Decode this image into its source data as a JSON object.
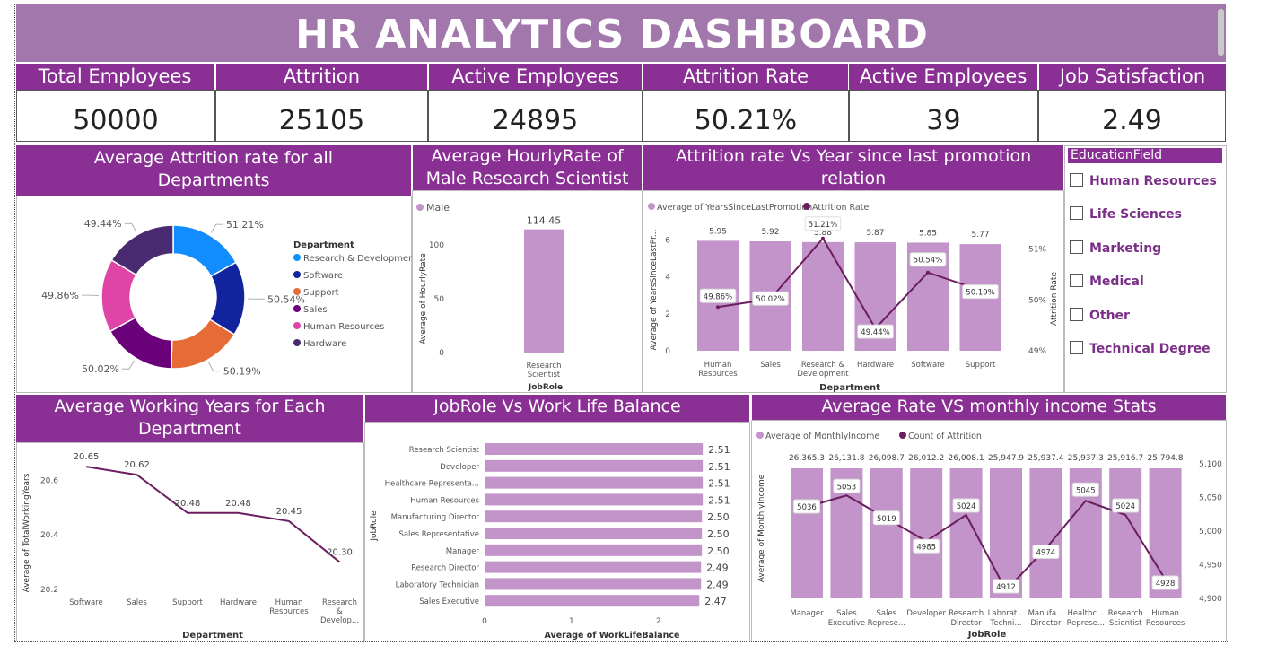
{
  "title": "HR ANALYTICS DASHBOARD",
  "kpis": [
    {
      "label": "Total Employees",
      "value": "50000"
    },
    {
      "label": "Attrition",
      "value": "25105"
    },
    {
      "label": "Active Employees",
      "value": "24895"
    },
    {
      "label": "Attrition Rate",
      "value": "50.21%"
    },
    {
      "label": "Active Employees",
      "value": "39"
    },
    {
      "label": "Job Satisfaction",
      "value": "2.49"
    }
  ],
  "education_filter": {
    "title": "EducationField",
    "items": [
      "Human Resources",
      "Life Sciences",
      "Marketing",
      "Medical",
      "Other",
      "Technical Degree"
    ]
  },
  "colors": {
    "header": "#8a2f94",
    "title_bar": "#a277ac",
    "bar": "#c294c9",
    "line": "#6b1d5e"
  },
  "chart_data": [
    {
      "type": "pie",
      "title": "Average Attrition rate for all Departments",
      "legend_title": "Department",
      "legend_position": "right",
      "slices": [
        {
          "label": "Research & Development",
          "value": 51.21,
          "display": "51.21%",
          "color": "#118dff"
        },
        {
          "label": "Software",
          "value": 50.54,
          "display": "50.54%",
          "color": "#12239e"
        },
        {
          "label": "Support",
          "value": 50.19,
          "display": "50.19%",
          "color": "#e66c37"
        },
        {
          "label": "Sales",
          "value": 50.02,
          "display": "50.02%",
          "color": "#6b007b"
        },
        {
          "label": "Human Resources",
          "value": 49.86,
          "display": "49.86%",
          "color": "#e044a7"
        },
        {
          "label": "Hardware",
          "value": 49.44,
          "display": "49.44%",
          "color": "#4a2a70"
        }
      ]
    },
    {
      "type": "bar",
      "title": "Average HourlyRate of Male Research Scientist",
      "legend": "Male",
      "categories": [
        "Research Scientist"
      ],
      "values": [
        114.45
      ],
      "value_labels": [
        "114.45"
      ],
      "xlabel": "JobRole",
      "ylabel": "Average of HourlyRate",
      "yticks": [
        0,
        50,
        100
      ],
      "ylim": [
        0,
        125
      ]
    },
    {
      "type": "bar",
      "title": "Attrition rate Vs Year since last promotion relation",
      "legend": [
        "Average of YearsSinceLastPromotion",
        "Attrition Rate"
      ],
      "categories": [
        "Human Resources",
        "Sales",
        "Research & Development",
        "Hardware",
        "Software",
        "Support"
      ],
      "bar_values": [
        5.95,
        5.92,
        5.88,
        5.87,
        5.85,
        5.77
      ],
      "line_values": [
        49.86,
        50.02,
        51.21,
        49.44,
        50.54,
        50.19
      ],
      "line_labels": [
        "49.86%",
        "50.02%",
        "51.21%",
        "49.44%",
        "50.54%",
        "50.19%"
      ],
      "xlabel": "Department",
      "ylabel": "Average of YearsSinceLastPr...",
      "y2label": "Attrition Rate",
      "yticks": [
        0,
        2,
        4,
        6
      ],
      "y2ticks": [
        "49%",
        "50%",
        "51%"
      ],
      "ylim": [
        0,
        6.6
      ],
      "y2lim": [
        49,
        51.4
      ]
    },
    {
      "type": "line",
      "title": "Average Working Years for Each Department",
      "categories": [
        "Software",
        "Sales",
        "Support",
        "Hardware",
        "Human Resources",
        "Research & Develop..."
      ],
      "values": [
        20.65,
        20.62,
        20.48,
        20.48,
        20.45,
        20.3
      ],
      "value_labels": [
        "20.65",
        "20.62",
        "20.48",
        "20.48",
        "20.45",
        "20.30"
      ],
      "xlabel": "Department",
      "ylabel": "Average of TotalWorkingYears",
      "yticks": [
        "20.2",
        "20.4",
        "20.6"
      ],
      "ylim": [
        20.2,
        20.67
      ]
    },
    {
      "type": "bar",
      "orientation": "horizontal",
      "title": "JobRole Vs Work Life Balance",
      "categories": [
        "Research Scientist",
        "Developer",
        "Healthcare Representa...",
        "Human Resources",
        "Manufacturing Director",
        "Sales Representative",
        "Manager",
        "Research Director",
        "Laboratory Technician",
        "Sales Executive"
      ],
      "values": [
        2.51,
        2.51,
        2.51,
        2.51,
        2.5,
        2.5,
        2.5,
        2.49,
        2.49,
        2.47
      ],
      "value_labels": [
        "2.51",
        "2.51",
        "2.51",
        "2.51",
        "2.50",
        "2.50",
        "2.50",
        "2.49",
        "2.49",
        "2.47"
      ],
      "xlabel": "Average of WorkLifeBalance",
      "ylabel": "JobRole",
      "xticks": [
        0,
        1,
        2
      ],
      "xlim": [
        0,
        2.55
      ]
    },
    {
      "type": "bar",
      "title": "Average Rate VS monthly income Stats",
      "legend": [
        "Average of MonthlyIncome",
        "Count of Attrition"
      ],
      "categories": [
        "Manager",
        "Sales Executive",
        "Sales Represe...",
        "Developer",
        "Research Director",
        "Laborat... Techni...",
        "Manufa... Director",
        "Healthc... Represe...",
        "Research Scientist",
        "Human Resources"
      ],
      "bar_values": [
        26365.3,
        26131.8,
        26098.7,
        26012.2,
        26008.1,
        25947.9,
        25937.4,
        25937.3,
        25916.7,
        25794.8
      ],
      "bar_labels": [
        "26,365.3",
        "26,131.8",
        "26,098.7",
        "26,012.2",
        "26,008.1",
        "25,947.9",
        "25,937.4",
        "25,937.3",
        "25,916.7",
        "25,794.8"
      ],
      "line_values": [
        5036,
        5053,
        5019,
        4985,
        5024,
        4912,
        4974,
        5045,
        5024,
        4928
      ],
      "line_labels": [
        "5036",
        "5053",
        "5019",
        "4985",
        "5024",
        "4912",
        "4974",
        "5045",
        "5024",
        "4928"
      ],
      "xlabel": "JobRole",
      "ylabel": "Average of MonthlyIncome",
      "y2ticks": [
        "4,900",
        "4,950",
        "5,000",
        "5,050",
        "5,100"
      ],
      "ylim": [
        0,
        28000
      ],
      "y2lim": [
        4900,
        5100
      ]
    }
  ]
}
